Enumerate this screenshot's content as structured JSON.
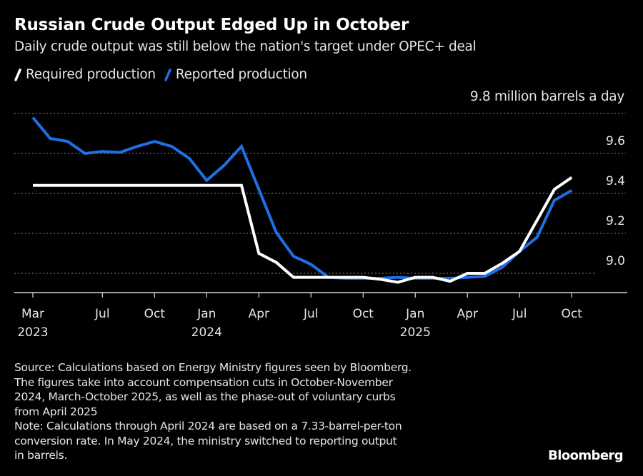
{
  "header": {
    "title": "Russian Crude Output Edged Up in October",
    "subtitle": "Daily crude output was still below the nation's target under OPEC+ deal"
  },
  "legend": [
    {
      "label": "Required production",
      "color": "#ffffff"
    },
    {
      "label": "Reported production",
      "color": "#1f6fe5"
    }
  ],
  "footer": {
    "source": "Source: Calculations based on Energy Ministry figures seen by Bloomberg.\nThe figures take into account compensation cuts in October-November\n2024, March-October 2025, as well as the phase-out of voluntary curbs\nfrom April 2025",
    "note": "Note: Calculations through April 2024 are based on a 7.33-barrel-per-ton\nconversion rate. In May 2024, the ministry switched to reporting output\nin barrels.",
    "brand": "Bloomberg"
  },
  "chart_data": {
    "type": "line",
    "title": "Russian Crude Output Edged Up in October",
    "subtitle": "Daily crude output was still below the nation's target under OPEC+ deal",
    "xlabel": "",
    "ylabel": "",
    "unit_label": "9.8 million barrels a day",
    "ylim": [
      8.9,
      9.8
    ],
    "y_ticks": [
      {
        "value": 9.8,
        "label": ""
      },
      {
        "value": 9.6,
        "label": "9.6"
      },
      {
        "value": 9.4,
        "label": "9.4"
      },
      {
        "value": 9.2,
        "label": "9.2"
      },
      {
        "value": 9.0,
        "label": "9.0"
      }
    ],
    "grid": true,
    "legend_position": "top-left",
    "x": [
      "2023-03",
      "2023-04",
      "2023-05",
      "2023-06",
      "2023-07",
      "2023-08",
      "2023-09",
      "2023-10",
      "2023-11",
      "2023-12",
      "2024-01",
      "2024-02",
      "2024-03",
      "2024-04",
      "2024-05",
      "2024-06",
      "2024-07",
      "2024-08",
      "2024-09",
      "2024-10",
      "2024-11",
      "2024-12",
      "2025-01",
      "2025-02",
      "2025-03",
      "2025-04",
      "2025-05",
      "2025-06",
      "2025-07",
      "2025-08",
      "2025-09",
      "2025-10"
    ],
    "x_ticks": [
      {
        "index": 0,
        "label": "Mar",
        "year": "2023"
      },
      {
        "index": 4,
        "label": "Jul",
        "year": ""
      },
      {
        "index": 7,
        "label": "Oct",
        "year": ""
      },
      {
        "index": 10,
        "label": "Jan",
        "year": "2024"
      },
      {
        "index": 13,
        "label": "Apr",
        "year": ""
      },
      {
        "index": 16,
        "label": "Jul",
        "year": ""
      },
      {
        "index": 19,
        "label": "Oct",
        "year": ""
      },
      {
        "index": 22,
        "label": "Jan",
        "year": "2025"
      },
      {
        "index": 25,
        "label": "Apr",
        "year": ""
      },
      {
        "index": 28,
        "label": "Jul",
        "year": ""
      },
      {
        "index": 31,
        "label": "Oct",
        "year": ""
      }
    ],
    "series": [
      {
        "name": "Reported production",
        "color": "#1f6fe5",
        "values": [
          9.78,
          9.675,
          9.66,
          9.6,
          9.61,
          9.605,
          9.635,
          9.66,
          9.635,
          9.575,
          9.465,
          9.54,
          9.635,
          9.42,
          9.205,
          9.085,
          9.045,
          8.98,
          8.975,
          8.975,
          8.975,
          8.98,
          8.975,
          8.975,
          8.975,
          8.98,
          8.985,
          9.03,
          9.11,
          9.18,
          9.365,
          9.415
        ]
      },
      {
        "name": "Required production",
        "color": "#ffffff",
        "values": [
          9.44,
          9.44,
          9.44,
          9.44,
          9.44,
          9.44,
          9.44,
          9.44,
          9.44,
          9.44,
          9.44,
          9.44,
          9.44,
          9.1,
          9.055,
          8.98,
          8.98,
          8.98,
          8.98,
          8.98,
          8.97,
          8.955,
          8.98,
          8.98,
          8.96,
          9.0,
          9.0,
          9.05,
          9.11,
          9.265,
          9.42,
          9.48
        ]
      }
    ]
  }
}
